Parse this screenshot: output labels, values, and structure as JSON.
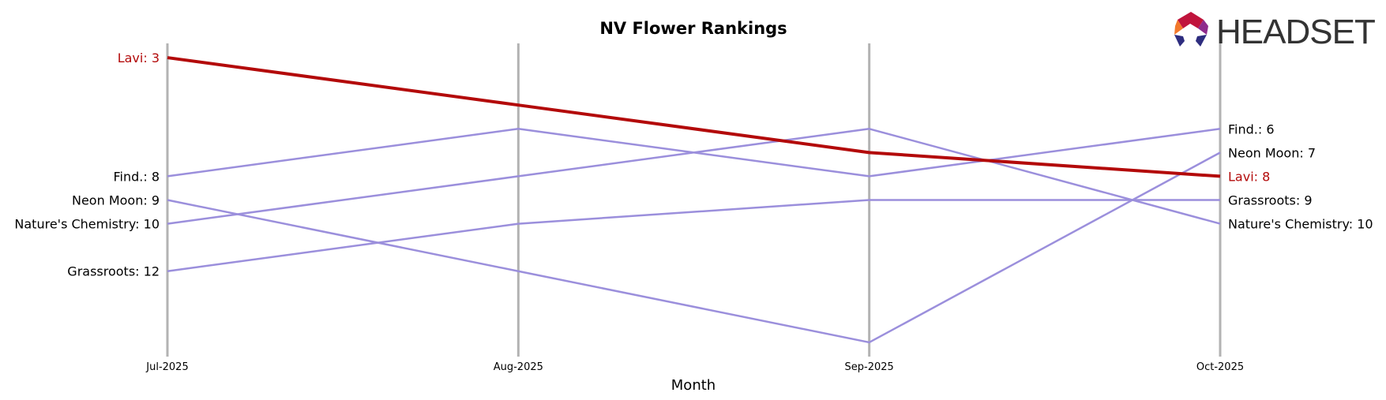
{
  "chart_data": {
    "type": "line",
    "title": "NV Flower Rankings",
    "xlabel": "Month",
    "ylabel": "",
    "categories": [
      "Jul-2025",
      "Aug-2025",
      "Sep-2025",
      "Oct-2025"
    ],
    "y_inverted": true,
    "ylim": [
      2.4,
      15.6
    ],
    "grid": "vertical lines at each month",
    "legend": "none",
    "series": [
      {
        "name": "Find.",
        "values": [
          8,
          6,
          8,
          6
        ],
        "color": "#9b8fdc",
        "highlight": false,
        "start_label": "Find.: 8",
        "end_label": "Find.: 6"
      },
      {
        "name": "Neon Moon",
        "values": [
          9,
          12,
          15,
          7
        ],
        "color": "#9b8fdc",
        "highlight": false,
        "start_label": "Neon Moon: 9",
        "end_label": "Neon Moon: 7"
      },
      {
        "name": "Nature's Chemistry",
        "values": [
          10,
          8,
          6,
          10
        ],
        "color": "#9b8fdc",
        "highlight": false,
        "start_label": "Nature's Chemistry: 10",
        "end_label": "Nature's Chemistry: 10"
      },
      {
        "name": "Grassroots",
        "values": [
          12,
          10,
          9,
          9
        ],
        "color": "#9b8fdc",
        "highlight": false,
        "start_label": "Grassroots: 12",
        "end_label": "Grassroots: 9"
      },
      {
        "name": "Lavi",
        "values": [
          3,
          5,
          7,
          8
        ],
        "color": "#b30a0a",
        "highlight": true,
        "start_label": "Lavi: 3",
        "end_label": "Lavi: 8"
      }
    ]
  },
  "logo": {
    "text": "HEADSET",
    "icon": "headset-hexagon-logo"
  },
  "colors": {
    "gridline": "#b3b3b3",
    "muted_line": "#9b8fdc",
    "highlight_line": "#b30a0a",
    "text": "#000000"
  }
}
